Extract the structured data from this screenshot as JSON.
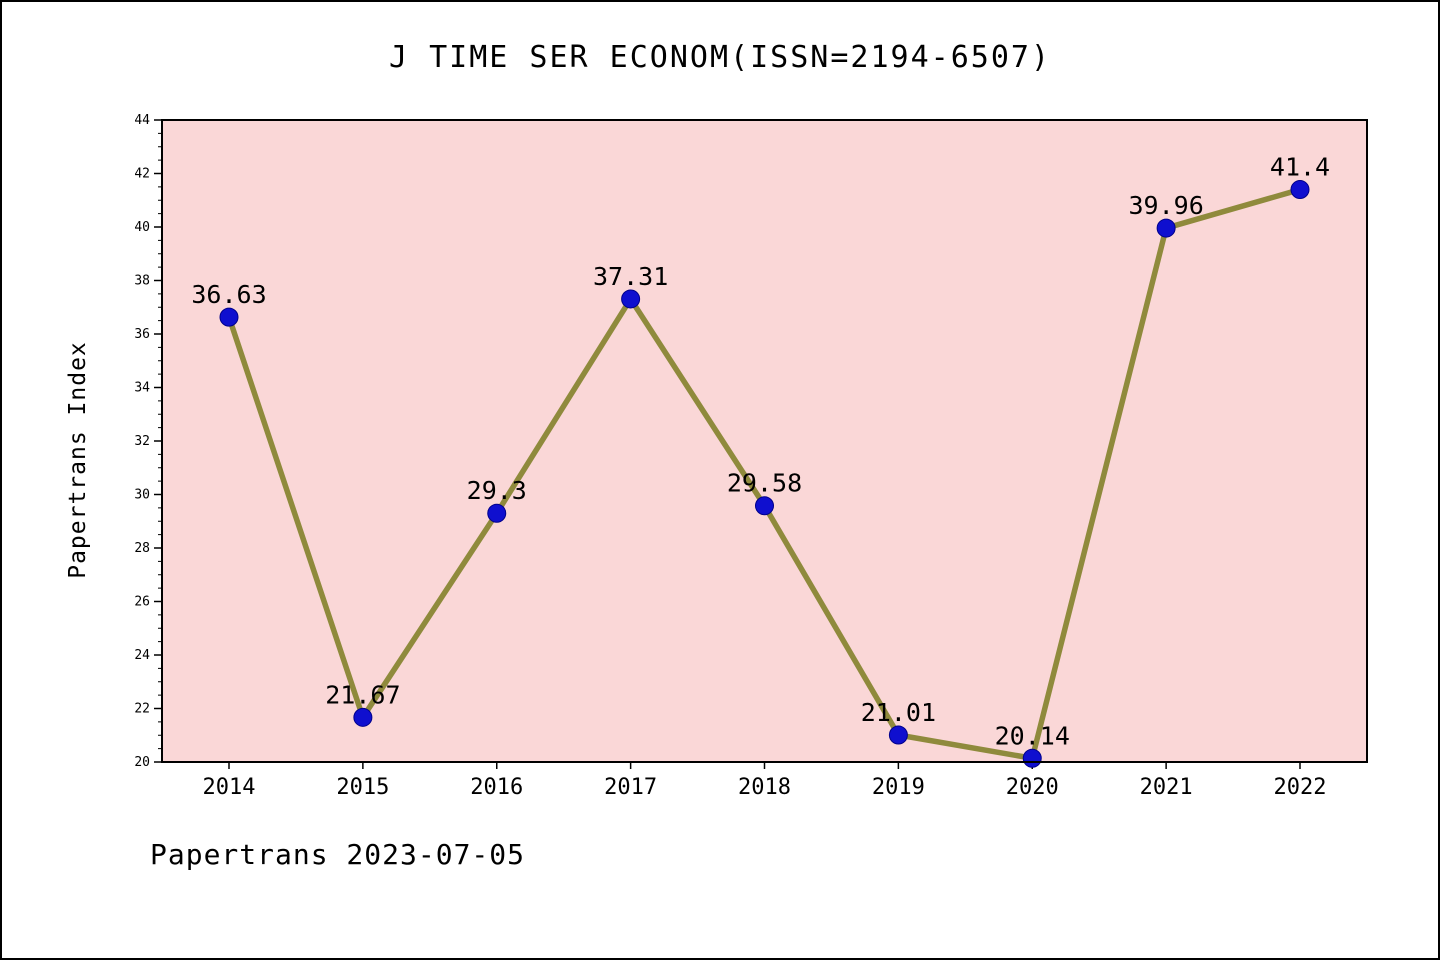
{
  "chart": {
    "title": "J TIME SER ECONOM(ISSN=2194-6507)",
    "ylabel": "Papertrans Index",
    "footer": "Papertrans 2023-07-05"
  },
  "chart_data": {
    "type": "line",
    "title": "J TIME SER ECONOM(ISSN=2194-6507)",
    "xlabel": "",
    "ylabel": "Papertrans Index",
    "categories": [
      "2014",
      "2015",
      "2016",
      "2017",
      "2018",
      "2019",
      "2020",
      "2021",
      "2022"
    ],
    "values": [
      36.63,
      21.67,
      29.3,
      37.31,
      29.58,
      21.01,
      20.14,
      39.96,
      41.4
    ],
    "point_labels": [
      "36.63",
      "21.67",
      "29.3",
      "37.31",
      "29.58",
      "21.01",
      "20.14",
      "39.96",
      "41.4"
    ],
    "ylim": [
      20,
      44
    ],
    "ytick_step": 2,
    "ytick_minor_step": 0.5,
    "grid": false,
    "legend": false,
    "colors": {
      "line": "#8f8a3c",
      "marker": "#0f0fcf",
      "marker_edge": "#00008b",
      "plot_bg": "#fad7d7",
      "axis": "#000000",
      "text": "#000000"
    }
  }
}
